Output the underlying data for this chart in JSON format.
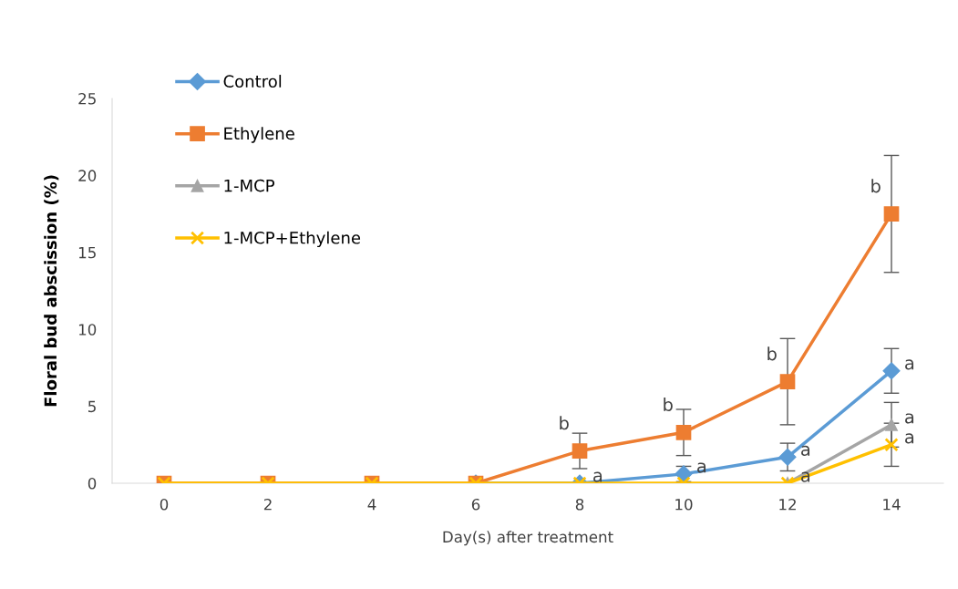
{
  "chart_data": {
    "type": "line",
    "xlabel": "Day(s) after treatment",
    "ylabel": "Floral bud abscission (%)",
    "categories": [
      "0",
      "2",
      "4",
      "6",
      "8",
      "10",
      "12",
      "14"
    ],
    "ylim": [
      0,
      25
    ],
    "yticks": [
      0,
      5,
      10,
      15,
      20,
      25
    ],
    "grid": false,
    "legend": "top left",
    "series": [
      {
        "name": "Control",
        "color": "#5b9bd5",
        "marker": "diamond",
        "values": [
          null,
          null,
          null,
          0,
          0,
          0.6,
          1.7,
          7.3
        ],
        "errors": [
          null,
          null,
          null,
          null,
          null,
          0.5,
          0.9,
          1.45
        ]
      },
      {
        "name": "Ethylene",
        "color": "#ed7d31",
        "marker": "square",
        "values": [
          0,
          0,
          0,
          0,
          2.1,
          3.3,
          6.6,
          17.5
        ],
        "errors": [
          null,
          null,
          null,
          null,
          1.15,
          1.5,
          2.8,
          3.8
        ]
      },
      {
        "name": "1-MCP",
        "color": "#a5a5a5",
        "marker": "triangle",
        "values": [
          null,
          null,
          null,
          null,
          null,
          null,
          0,
          3.8
        ],
        "errors": [
          null,
          null,
          null,
          null,
          null,
          null,
          null,
          1.45
        ]
      },
      {
        "name": "1-MCP+Ethylene",
        "color": "#ffc000",
        "marker": "cross",
        "values": [
          0,
          0,
          0,
          0,
          0,
          0,
          0,
          2.5
        ],
        "errors": [
          null,
          null,
          null,
          null,
          null,
          null,
          null,
          1.4
        ]
      }
    ],
    "annotations": [
      {
        "text": "b",
        "x": "8",
        "y": 2.1
      },
      {
        "text": "a",
        "x": "8",
        "y": 0
      },
      {
        "text": "b",
        "x": "10",
        "y": 3.3
      },
      {
        "text": "a",
        "x": "10",
        "y": 0.6
      },
      {
        "text": "b",
        "x": "12",
        "y": 6.6
      },
      {
        "text": "a",
        "x": "12",
        "y": 1.7
      },
      {
        "text": "a",
        "x": "12",
        "y": 0
      },
      {
        "text": "b",
        "x": "14",
        "y": 17.5
      },
      {
        "text": "a",
        "x": "14",
        "y": 7.3
      },
      {
        "text": "a",
        "x": "14",
        "y": 3.8
      },
      {
        "text": "a",
        "x": "14",
        "y": 2.5
      }
    ]
  }
}
